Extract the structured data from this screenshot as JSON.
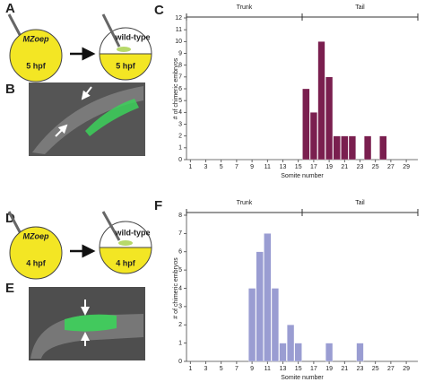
{
  "panels": {
    "A": {
      "label": "A",
      "donor": "MZoep",
      "donor_stage": "5 hpf",
      "host": "wild-type",
      "host_stage": "5 hpf"
    },
    "B": {
      "label": "B"
    },
    "D": {
      "label": "D",
      "donor": "MZoep",
      "donor_stage": "4 hpf",
      "host": "wild-type",
      "host_stage": "4 hpf"
    },
    "E": {
      "label": "E"
    }
  },
  "chart_data": [
    {
      "type": "bar",
      "panel_label": "C",
      "trunk_label": "Trunk",
      "tail_label": "Tail",
      "x_label": "Somite number",
      "y_label": "# of chimeric embryos",
      "color": "#7a1f4f",
      "categories": [
        "1",
        null,
        "3",
        null,
        "5",
        null,
        "7",
        null,
        "9",
        null,
        "11",
        null,
        "13",
        null,
        "15",
        null,
        "17",
        null,
        "19",
        null,
        "21",
        null,
        "23",
        null,
        "25",
        null,
        "27",
        null,
        "29",
        null
      ],
      "values": [
        0,
        0,
        0,
        0,
        0,
        0,
        0,
        0,
        0,
        0,
        0,
        0,
        0,
        0,
        0,
        6,
        4,
        10,
        7,
        2,
        2,
        2,
        0,
        2,
        0,
        2,
        0,
        0,
        0,
        0
      ],
      "ylim": [
        0,
        12
      ],
      "yticks": [
        0,
        1,
        2,
        3,
        4,
        5,
        6,
        7,
        8,
        9,
        10,
        11,
        12
      ]
    },
    {
      "type": "bar",
      "panel_label": "F",
      "trunk_label": "Trunk",
      "tail_label": "Tail",
      "x_label": "Somite number",
      "y_label": "# of chimeric embryos",
      "color": "#9a9dd2",
      "categories": [
        "1",
        null,
        "3",
        null,
        "5",
        null,
        "7",
        null,
        "9",
        null,
        "11",
        null,
        "13",
        null,
        "15",
        null,
        "17",
        null,
        "19",
        null,
        "21",
        null,
        "23",
        null,
        "25",
        null,
        "27",
        null,
        "29",
        null
      ],
      "values": [
        0,
        0,
        0,
        0,
        0,
        0,
        0,
        0,
        4,
        6,
        7,
        4,
        1,
        2,
        1,
        0,
        0,
        0,
        1,
        0,
        0,
        0,
        1,
        0,
        0,
        0,
        0,
        0,
        0,
        0
      ],
      "ylim": [
        0,
        8
      ],
      "yticks": [
        0,
        1,
        2,
        3,
        4,
        5,
        6,
        7,
        8
      ]
    }
  ]
}
